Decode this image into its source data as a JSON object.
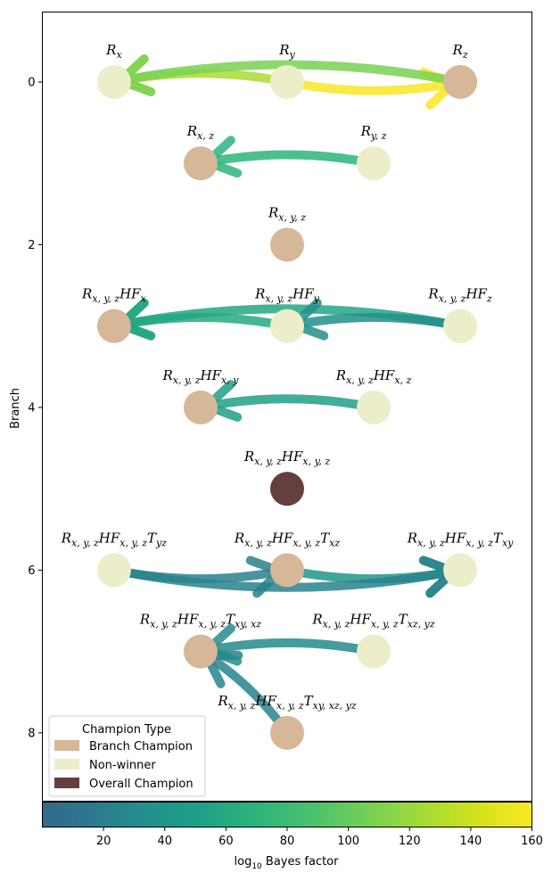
{
  "chart_data": {
    "type": "network",
    "ylabel": "Branch",
    "ylim": [
      8.84,
      -0.86
    ],
    "xlim": [
      -0.99,
      0.99
    ],
    "yticks": [
      0,
      2,
      4,
      6,
      8
    ],
    "nodes": [
      {
        "id": "Rx",
        "label_main": "R",
        "label_sub": "x",
        "label_tail": [],
        "branch": 0,
        "x": -0.7,
        "type": "Non-winner"
      },
      {
        "id": "Ry",
        "label_main": "R",
        "label_sub": "y",
        "label_tail": [],
        "branch": 0,
        "x": 0.0,
        "type": "Non-winner"
      },
      {
        "id": "Rz",
        "label_main": "R",
        "label_sub": "z",
        "label_tail": [],
        "branch": 0,
        "x": 0.7,
        "type": "Branch Champion"
      },
      {
        "id": "Rxz",
        "label_main": "R",
        "label_sub": "x, z",
        "label_tail": [],
        "branch": 1,
        "x": -0.35,
        "type": "Branch Champion"
      },
      {
        "id": "Ryz",
        "label_main": "R",
        "label_sub": "y, z",
        "label_tail": [],
        "branch": 1,
        "x": 0.35,
        "type": "Non-winner"
      },
      {
        "id": "Rxyz",
        "label_main": "R",
        "label_sub": "x, y, z",
        "label_tail": [],
        "branch": 2,
        "x": 0.0,
        "type": "Branch Champion"
      },
      {
        "id": "HFx",
        "label_main": "R",
        "label_sub": "x, y, z",
        "label_tail": [
          [
            "HF",
            "x"
          ]
        ],
        "branch": 3,
        "x": -0.7,
        "type": "Branch Champion"
      },
      {
        "id": "HFy",
        "label_main": "R",
        "label_sub": "x, y, z",
        "label_tail": [
          [
            "HF",
            "y"
          ]
        ],
        "branch": 3,
        "x": 0.0,
        "type": "Non-winner"
      },
      {
        "id": "HFz",
        "label_main": "R",
        "label_sub": "x, y, z",
        "label_tail": [
          [
            "HF",
            "z"
          ]
        ],
        "branch": 3,
        "x": 0.7,
        "type": "Non-winner"
      },
      {
        "id": "HFxy",
        "label_main": "R",
        "label_sub": "x, y, z",
        "label_tail": [
          [
            "HF",
            "x, y"
          ]
        ],
        "branch": 4,
        "x": -0.35,
        "type": "Branch Champion"
      },
      {
        "id": "HFxz",
        "label_main": "R",
        "label_sub": "x, y, z",
        "label_tail": [
          [
            "HF",
            "x, z"
          ]
        ],
        "branch": 4,
        "x": 0.35,
        "type": "Non-winner"
      },
      {
        "id": "HFxyz",
        "label_main": "R",
        "label_sub": "x, y, z",
        "label_tail": [
          [
            "HF",
            "x, y, z"
          ]
        ],
        "branch": 5,
        "x": 0.0,
        "type": "Overall Champion"
      },
      {
        "id": "Tyz",
        "label_main": "R",
        "label_sub": "x, y, z",
        "label_tail": [
          [
            "HF",
            "x, y, z"
          ],
          [
            "T",
            "yz"
          ]
        ],
        "branch": 6,
        "x": -0.7,
        "type": "Non-winner"
      },
      {
        "id": "Txz",
        "label_main": "R",
        "label_sub": "x, y, z",
        "label_tail": [
          [
            "HF",
            "x, y, z"
          ],
          [
            "T",
            "xz"
          ]
        ],
        "branch": 6,
        "x": 0.0,
        "type": "Branch Champion"
      },
      {
        "id": "Txy",
        "label_main": "R",
        "label_sub": "x, y, z",
        "label_tail": [
          [
            "HF",
            "x, y, z"
          ],
          [
            "T",
            "xy"
          ]
        ],
        "branch": 6,
        "x": 0.7,
        "type": "Non-winner"
      },
      {
        "id": "Txyxz",
        "label_main": "R",
        "label_sub": "x, y, z",
        "label_tail": [
          [
            "HF",
            "x, y, z"
          ],
          [
            "T",
            "xy, xz"
          ]
        ],
        "branch": 7,
        "x": -0.35,
        "type": "Branch Champion"
      },
      {
        "id": "Txzyz",
        "label_main": "R",
        "label_sub": "x, y, z",
        "label_tail": [
          [
            "HF",
            "x, y, z"
          ],
          [
            "T",
            "xz, yz"
          ]
        ],
        "branch": 7,
        "x": 0.35,
        "type": "Non-winner"
      },
      {
        "id": "Txyxzyz",
        "label_main": "R",
        "label_sub": "x, y, z",
        "label_tail": [
          [
            "HF",
            "x, y, z"
          ],
          [
            "T",
            "xy, xz, yz"
          ]
        ],
        "branch": 8,
        "x": 0.0,
        "type": "Branch Champion"
      }
    ],
    "edges": [
      {
        "from": "Ry",
        "to": "Rx",
        "bayes_factor": 127
      },
      {
        "from": "Ry",
        "to": "Rz",
        "bayes_factor": 158
      },
      {
        "from": "Rz",
        "to": "Rx",
        "bayes_factor": 108
      },
      {
        "from": "Ryz",
        "to": "Rxz",
        "bayes_factor": 70
      },
      {
        "from": "HFy",
        "to": "HFx",
        "bayes_factor": 60
      },
      {
        "from": "HFz",
        "to": "HFx",
        "bayes_factor": 58
      },
      {
        "from": "HFz",
        "to": "HFy",
        "bayes_factor": 33
      },
      {
        "from": "HFxz",
        "to": "HFxy",
        "bayes_factor": 50
      },
      {
        "from": "Tyz",
        "to": "Txz",
        "bayes_factor": 22
      },
      {
        "from": "Txz",
        "to": "Txy",
        "bayes_factor": 38
      },
      {
        "from": "Tyz",
        "to": "Txy",
        "bayes_factor": 24
      },
      {
        "from": "Txzyz",
        "to": "Txyxz",
        "bayes_factor": 30
      },
      {
        "from": "Txyxzyz",
        "to": "Txyxz",
        "bayes_factor": 25
      }
    ],
    "legend": {
      "title": "Champion Type",
      "placement": "lower-left",
      "entries": [
        {
          "label": "Branch Champion",
          "color": "#d6b798"
        },
        {
          "label": "Non-winner",
          "color": "#ecedc9"
        },
        {
          "label": "Overall Champion",
          "color": "#653f3f"
        }
      ]
    },
    "colorbar": {
      "label_main": "log",
      "label_sub": "10",
      "label_rest": " Bayes factor",
      "min": 0,
      "max": 160,
      "ticks": [
        20,
        40,
        60,
        80,
        100,
        120,
        140,
        160
      ],
      "colors": [
        "#34688d",
        "#2b7b8e",
        "#22928c",
        "#1fa287",
        "#2fb47c",
        "#4cc26c",
        "#75d055",
        "#a4db36",
        "#d2e21b",
        "#fde725"
      ]
    }
  }
}
